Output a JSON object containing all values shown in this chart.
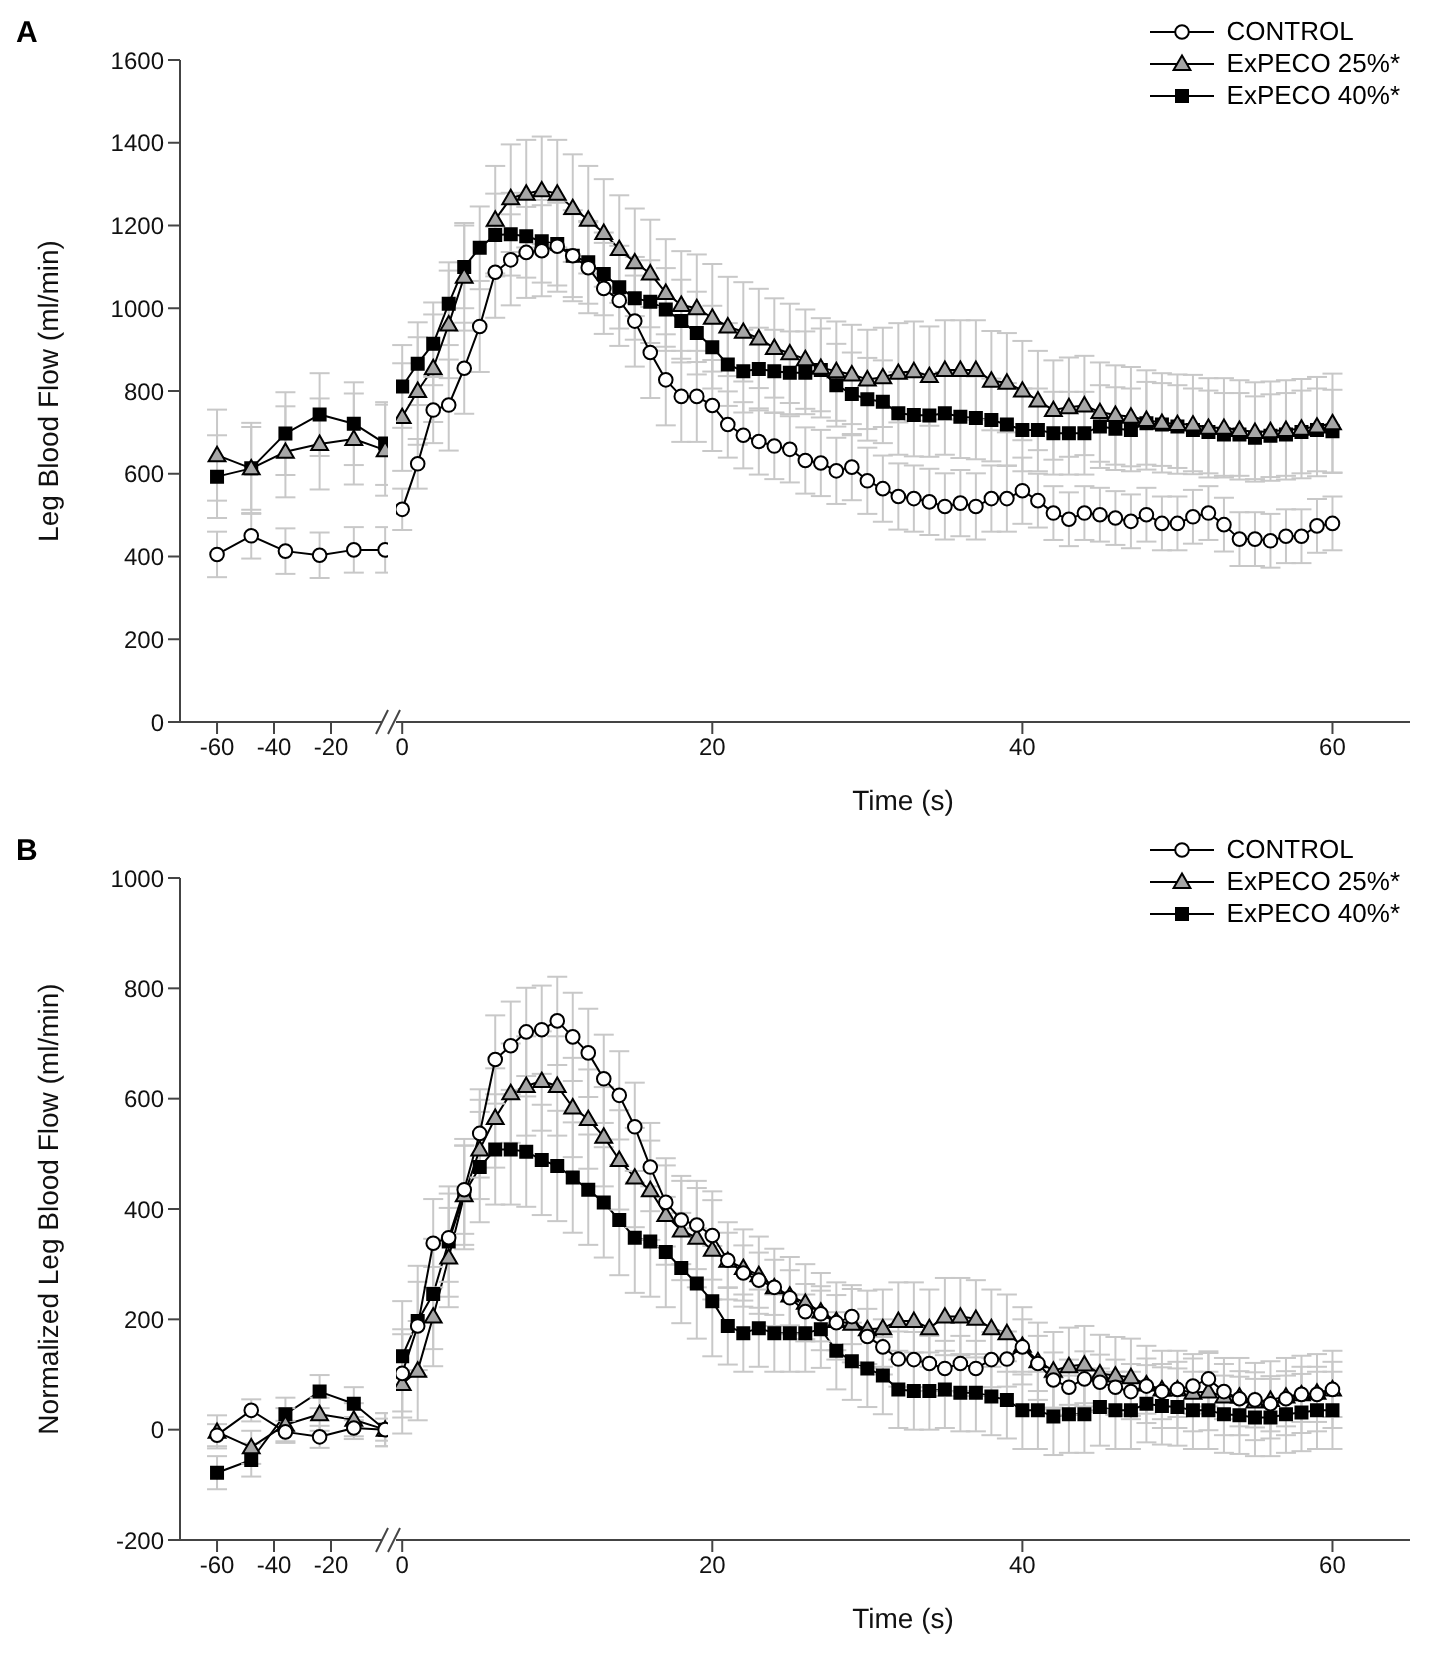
{
  "chart_data": [
    {
      "type": "line",
      "title": "A",
      "ylabel": "Leg Blood Flow (ml/min)",
      "x": [
        -60,
        -48,
        -36,
        -24,
        -12,
        -1
      ],
      "xlim": [
        -73,
        0
      ],
      "xticks": [
        -60,
        -40,
        -20
      ],
      "ylim": [
        0,
        1600
      ],
      "yticks": [
        0,
        200,
        400,
        600,
        800,
        1000,
        1200,
        1400,
        1600
      ],
      "series": [
        {
          "color": "#ffffff",
          "marker": "circle",
          "values": [
            405,
            450,
            413,
            403,
            416,
            416
          ],
          "errors": [
            55,
            55,
            55,
            55,
            55,
            55
          ]
        },
        {
          "color": "#a6a6a6",
          "marker": "triangle",
          "values": [
            645,
            613,
            653,
            672,
            684,
            657
          ],
          "errors": [
            110,
            110,
            110,
            110,
            110,
            110
          ]
        },
        {
          "color": "#000000",
          "marker": "square",
          "values": [
            593,
            613,
            697,
            743,
            721,
            673
          ],
          "errors": [
            100,
            100,
            100,
            100,
            100,
            100
          ]
        }
      ]
    },
    {
      "type": "line",
      "xlabel": "Time (s)",
      "x": [
        0,
        1,
        2,
        3,
        4,
        5,
        6,
        7,
        8,
        9,
        10,
        11,
        12,
        13,
        14,
        15,
        16,
        17,
        18,
        19,
        20,
        21,
        22,
        23,
        24,
        25,
        26,
        27,
        28,
        29,
        30,
        31,
        32,
        33,
        34,
        35,
        36,
        37,
        38,
        39,
        40,
        41,
        42,
        43,
        44,
        45,
        46,
        47,
        48,
        49,
        50,
        51,
        52,
        53,
        54,
        55,
        56,
        57,
        58,
        59,
        60
      ],
      "xlim": [
        -0.4,
        65
      ],
      "xticks": [
        0,
        20,
        40,
        60
      ],
      "ylim": [
        0,
        1600
      ],
      "tick_labels": "x",
      "legend": "top right",
      "series": [
        {
          "name": "CONTROL",
          "color": "#ffffff",
          "marker": "circle",
          "values": [
            514,
            624,
            754,
            766,
            855,
            956,
            1087,
            1117,
            1135,
            1139,
            1150,
            1127,
            1098,
            1048,
            1019,
            969,
            893,
            827,
            787,
            787,
            765,
            719,
            693,
            678,
            667,
            659,
            632,
            626,
            607,
            616,
            583,
            564,
            545,
            540,
            532,
            521,
            529,
            521,
            540,
            540,
            559,
            535,
            505,
            490,
            505,
            501,
            493,
            485,
            501,
            480,
            480,
            496,
            505,
            477,
            442,
            442,
            438,
            449,
            449,
            474,
            480
          ],
          "errors": [
            50,
            60,
            80,
            110,
            110,
            110,
            110,
            110,
            110,
            110,
            110,
            110,
            110,
            110,
            110,
            110,
            110,
            110,
            110,
            110,
            110,
            80,
            80,
            80,
            80,
            80,
            80,
            80,
            80,
            80,
            80,
            80,
            80,
            80,
            80,
            80,
            80,
            80,
            80,
            80,
            80,
            65,
            65,
            65,
            65,
            65,
            65,
            65,
            65,
            65,
            65,
            65,
            65,
            65,
            65,
            65,
            65,
            65,
            65,
            65,
            65
          ]
        },
        {
          "name": "ExPECO 25%*",
          "color": "#a6a6a6",
          "marker": "triangle",
          "values": [
            737,
            800,
            855,
            961,
            1076,
            null,
            1214,
            1266,
            1277,
            1285,
            1277,
            1242,
            1214,
            1182,
            1143,
            1111,
            1084,
            1037,
            1008,
            1000,
            977,
            956,
            943,
            927,
            904,
            891,
            877,
            856,
            848,
            840,
            828,
            833,
            844,
            848,
            836,
            851,
            851,
            851,
            825,
            820,
            801,
            777,
            754,
            761,
            765,
            749,
            742,
            738,
            730,
            723,
            720,
            719,
            711,
            711,
            706,
            701,
            703,
            706,
            709,
            714,
            722
          ],
          "errors": [
            130,
            130,
            130,
            130,
            130,
            null,
            130,
            130,
            130,
            130,
            130,
            130,
            130,
            130,
            130,
            130,
            130,
            130,
            130,
            130,
            130,
            120,
            120,
            120,
            120,
            120,
            120,
            120,
            120,
            120,
            120,
            120,
            120,
            120,
            120,
            120,
            120,
            120,
            120,
            120,
            120,
            120,
            120,
            120,
            120,
            120,
            120,
            120,
            120,
            120,
            120,
            120,
            120,
            120,
            120,
            120,
            120,
            120,
            120,
            120,
            120
          ]
        },
        {
          "name": "ExPECO 40%*",
          "color": "#000000",
          "marker": "square",
          "values": [
            811,
            866,
            914,
            1011,
            1100,
            1146,
            1177,
            1179,
            1174,
            1162,
            1155,
            1127,
            1111,
            1083,
            1051,
            1024,
            1016,
            997,
            969,
            940,
            906,
            864,
            848,
            853,
            848,
            844,
            844,
            851,
            814,
            793,
            780,
            774,
            746,
            742,
            741,
            746,
            738,
            735,
            730,
            719,
            706,
            706,
            698,
            698,
            698,
            714,
            709,
            706,
            722,
            719,
            714,
            706,
            701,
            695,
            695,
            687,
            692,
            695,
            701,
            706,
            703
          ],
          "errors": [
            100,
            100,
            100,
            100,
            100,
            100,
            100,
            100,
            100,
            100,
            100,
            100,
            100,
            100,
            100,
            100,
            100,
            100,
            100,
            100,
            100,
            100,
            100,
            100,
            100,
            100,
            100,
            100,
            100,
            100,
            100,
            100,
            100,
            100,
            100,
            100,
            100,
            100,
            100,
            100,
            100,
            100,
            100,
            100,
            100,
            100,
            100,
            100,
            100,
            100,
            100,
            100,
            100,
            100,
            100,
            100,
            100,
            100,
            100,
            100,
            100
          ]
        }
      ]
    },
    {
      "type": "line",
      "title": "B",
      "ylabel": "Normalized Leg Blood Flow (ml/min)",
      "x": [
        -60,
        -48,
        -36,
        -24,
        -12,
        -1
      ],
      "xlim": [
        -73,
        0
      ],
      "xticks": [
        -60,
        -40,
        -20
      ],
      "ylim": [
        -200,
        1000
      ],
      "yticks": [
        -200,
        0,
        200,
        400,
        600,
        800,
        1000
      ],
      "series": [
        {
          "color": "#ffffff",
          "marker": "circle",
          "values": [
            -10,
            35,
            -4,
            -13,
            3,
            0
          ],
          "errors": [
            20,
            20,
            20,
            20,
            20,
            20
          ]
        },
        {
          "color": "#a6a6a6",
          "marker": "triangle",
          "values": [
            -4,
            -32,
            9,
            28,
            18,
            0
          ],
          "errors": [
            30,
            30,
            30,
            30,
            30,
            30
          ]
        },
        {
          "color": "#000000",
          "marker": "square",
          "values": [
            -78,
            -55,
            28,
            69,
            47,
            0
          ],
          "errors": [
            30,
            30,
            30,
            30,
            30,
            30
          ]
        }
      ]
    },
    {
      "type": "line",
      "xlabel": "Time (s)",
      "x": [
        0,
        1,
        2,
        3,
        4,
        5,
        6,
        7,
        8,
        9,
        10,
        11,
        12,
        13,
        14,
        15,
        16,
        17,
        18,
        19,
        20,
        21,
        22,
        23,
        24,
        25,
        26,
        27,
        28,
        29,
        30,
        31,
        32,
        33,
        34,
        35,
        36,
        37,
        38,
        39,
        40,
        41,
        42,
        43,
        44,
        45,
        46,
        47,
        48,
        49,
        50,
        51,
        52,
        53,
        54,
        55,
        56,
        57,
        58,
        59,
        60
      ],
      "xlim": [
        -0.4,
        65
      ],
      "xticks": [
        0,
        20,
        40,
        60
      ],
      "ylim": [
        -200,
        1000
      ],
      "tick_labels": "x",
      "legend": "top right",
      "series": [
        {
          "name": "CONTROL",
          "color": "#ffffff",
          "marker": "circle",
          "values": [
            102,
            188,
            338,
            348,
            435,
            537,
            671,
            696,
            721,
            725,
            741,
            712,
            683,
            636,
            606,
            549,
            476,
            412,
            380,
            371,
            352,
            307,
            284,
            271,
            258,
            239,
            214,
            210,
            194,
            205,
            169,
            150,
            128,
            127,
            120,
            111,
            120,
            111,
            127,
            128,
            150,
            120,
            90,
            77,
            92,
            86,
            77,
            69,
            79,
            69,
            73,
            79,
            92,
            69,
            56,
            54,
            47,
            56,
            64,
            64,
            73
          ],
          "errors": [
            80,
            80,
            80,
            80,
            80,
            80,
            80,
            80,
            80,
            80,
            80,
            80,
            80,
            80,
            80,
            80,
            80,
            80,
            80,
            80,
            80,
            50,
            50,
            50,
            50,
            50,
            50,
            50,
            50,
            50,
            50,
            50,
            50,
            50,
            50,
            50,
            50,
            50,
            50,
            50,
            50,
            50,
            50,
            50,
            50,
            50,
            50,
            50,
            50,
            50,
            50,
            50,
            50,
            50,
            50,
            50,
            50,
            50,
            50,
            50,
            50
          ]
        },
        {
          "name": "ExPECO 25%*",
          "color": "#a6a6a6",
          "marker": "triangle",
          "values": [
            83,
            107,
            205,
            312,
            425,
            508,
            565,
            610,
            623,
            632,
            623,
            584,
            563,
            531,
            489,
            457,
            434,
            389,
            361,
            348,
            326,
            306,
            293,
            280,
            258,
            243,
            230,
            214,
            197,
            192,
            182,
            184,
            197,
            197,
            184,
            205,
            205,
            201,
            184,
            175,
            152,
            124,
            107,
            115,
            118,
            102,
            98,
            95,
            82,
            73,
            73,
            67,
            69,
            60,
            60,
            51,
            54,
            60,
            64,
            67,
            73
          ],
          "errors": [
            90,
            90,
            90,
            90,
            90,
            90,
            90,
            90,
            90,
            90,
            90,
            90,
            90,
            90,
            90,
            90,
            90,
            90,
            90,
            90,
            90,
            70,
            70,
            70,
            70,
            70,
            70,
            70,
            70,
            70,
            70,
            70,
            70,
            70,
            70,
            70,
            70,
            70,
            70,
            70,
            70,
            70,
            70,
            70,
            70,
            70,
            70,
            70,
            70,
            70,
            70,
            70,
            70,
            70,
            70,
            70,
            70,
            70,
            70,
            70,
            70
          ]
        },
        {
          "name": "ExPECO 40%*",
          "color": "#000000",
          "marker": "square",
          "values": [
            133,
            197,
            246,
            341,
            427,
            476,
            508,
            508,
            504,
            489,
            478,
            457,
            435,
            412,
            380,
            348,
            341,
            322,
            293,
            265,
            233,
            188,
            175,
            184,
            175,
            175,
            175,
            182,
            143,
            124,
            111,
            98,
            73,
            70,
            70,
            73,
            67,
            67,
            60,
            54,
            35,
            35,
            24,
            28,
            28,
            41,
            35,
            35,
            47,
            43,
            41,
            35,
            35,
            28,
            26,
            22,
            22,
            28,
            31,
            35,
            35
          ],
          "errors": [
            100,
            100,
            100,
            100,
            100,
            100,
            100,
            100,
            100,
            100,
            100,
            100,
            100,
            100,
            100,
            100,
            100,
            100,
            100,
            100,
            100,
            70,
            70,
            70,
            70,
            70,
            70,
            70,
            70,
            70,
            70,
            70,
            70,
            70,
            70,
            70,
            70,
            70,
            70,
            70,
            70,
            70,
            70,
            70,
            70,
            70,
            70,
            70,
            70,
            70,
            70,
            70,
            70,
            70,
            70,
            70,
            70,
            70,
            70,
            70,
            70
          ]
        }
      ]
    }
  ]
}
